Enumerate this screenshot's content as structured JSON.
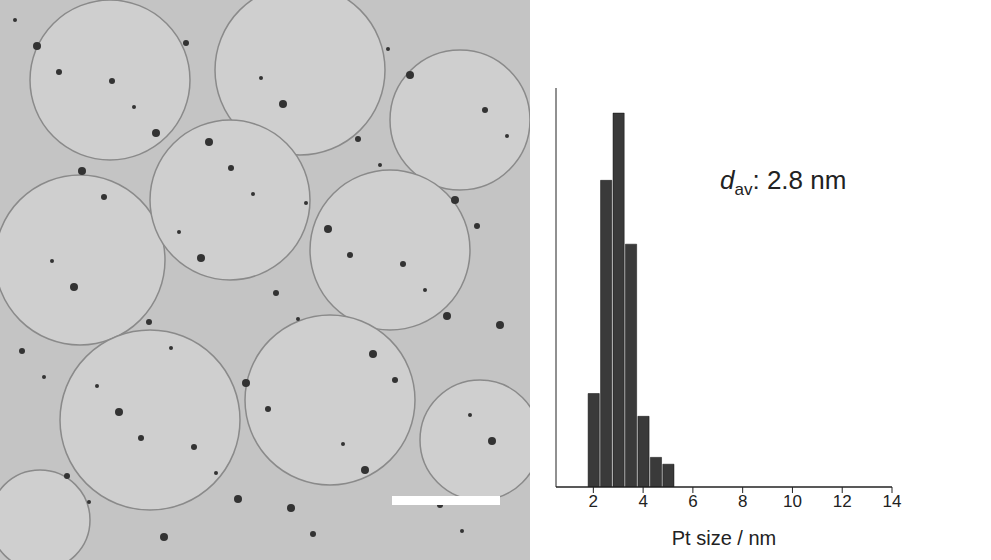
{
  "chart_data": {
    "type": "histogram",
    "x_label": "Pt size / nm",
    "annotations": [
      {
        "text": "d",
        "subscript": "av",
        "suffix": ": 2.8 nm"
      }
    ],
    "bins": [
      1.75,
      2.25,
      2.75,
      3.25,
      3.75,
      4.25,
      4.75,
      5.25
    ],
    "values": [
      8.2,
      26.9,
      32.8,
      21.3,
      6.2,
      2.6,
      2.0
    ],
    "color": "#3a3a3a",
    "xlim": [
      0.5,
      14
    ],
    "xticks": [
      2,
      4,
      6,
      8,
      10,
      12,
      14
    ],
    "ylim": [
      0,
      35
    ],
    "tick_labels": "x",
    "grid": false
  }
}
